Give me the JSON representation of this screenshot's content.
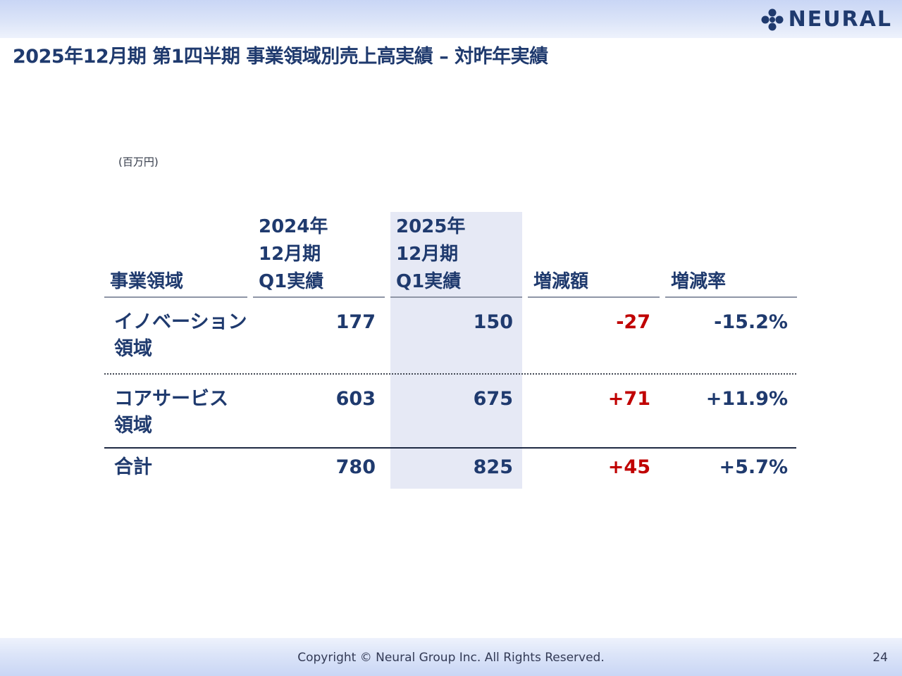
{
  "header": {
    "logo_text": "NEURAL",
    "logo_icon": "neural-dots-icon"
  },
  "title": "2025年12月期 第1四半期 事業領域別売上高実績 – 対昨年実績",
  "unit_note": "(百万円)",
  "table": {
    "columns": [
      {
        "lines": [
          "事業領域"
        ]
      },
      {
        "lines": [
          "2024年",
          "12月期",
          "Q1実績"
        ]
      },
      {
        "lines": [
          "2025年",
          "12月期",
          "Q1実績"
        ]
      },
      {
        "lines": [
          "増減額"
        ]
      },
      {
        "lines": [
          "増減率"
        ]
      }
    ],
    "rows": [
      {
        "name_lines": [
          "イノベーション",
          "領域"
        ],
        "prev": "177",
        "curr": "150",
        "diff": "-27",
        "rate": "-15.2%"
      },
      {
        "name_lines": [
          "コアサービス",
          "領域"
        ],
        "prev": "603",
        "curr": "675",
        "diff": "+71",
        "rate": "+11.9%"
      },
      {
        "name_lines": [
          "合計"
        ],
        "prev": "780",
        "curr": "825",
        "diff": "+45",
        "rate": "+5.7%"
      }
    ]
  },
  "footer": {
    "copyright": "Copyright © Neural Group Inc. All Rights Reserved.",
    "page_number": "24"
  },
  "colors": {
    "navy": "#1f3a6e",
    "red": "#c00000",
    "highlight": "#e6e9f5",
    "band": "#c9d6f5"
  }
}
